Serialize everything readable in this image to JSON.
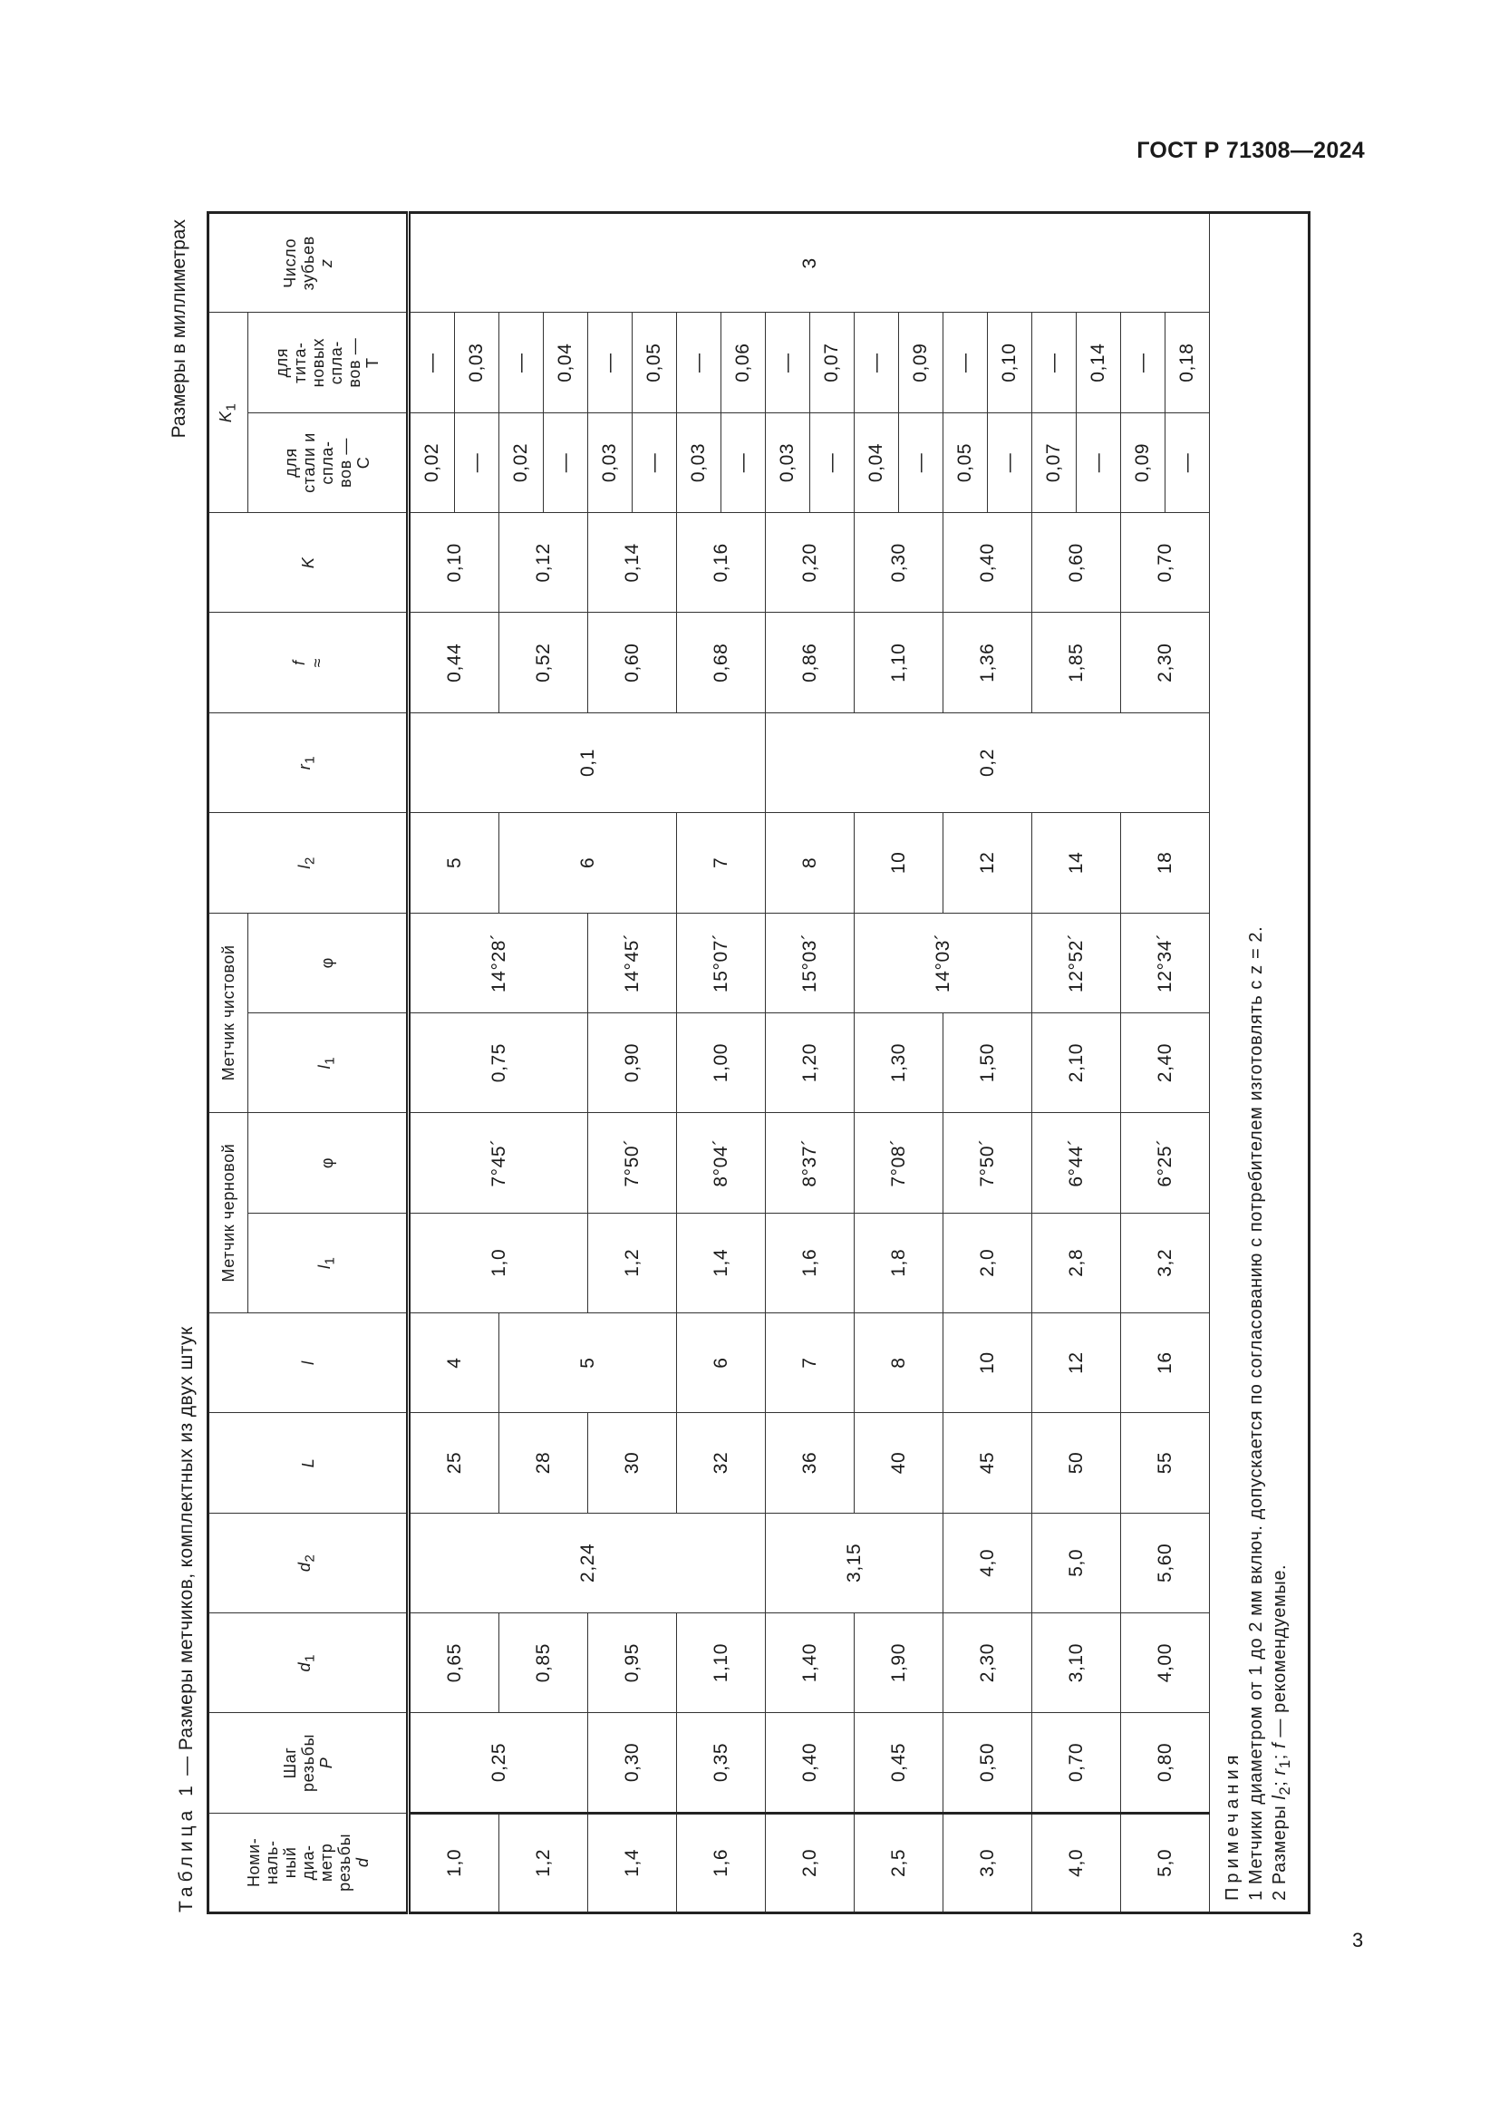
{
  "header": {
    "doc_id": "ГОСТ Р 71308—2024",
    "page_number": "3"
  },
  "caption": {
    "table_label": "Таблица 1",
    "table_title": " — Размеры метчиков, комплектных из двух штук",
    "units": "Размеры в миллиметрах"
  },
  "table_headers": {
    "d": {
      "text": "Номи-\nналь-\nный\nдиа-\nметр\nрезьбы",
      "sym": "d"
    },
    "P": {
      "text": "Шаг\nрезьбы",
      "sym": "P"
    },
    "d1": {
      "sym": "d",
      "sub": "1"
    },
    "d2": {
      "sym": "d",
      "sub": "2"
    },
    "L": {
      "sym": "L"
    },
    "l": {
      "sym": "l"
    },
    "rough_group": "Метчик черновой",
    "finish_group": "Метчик чистовой",
    "l1": {
      "sym": "l",
      "sub": "1"
    },
    "phi": "φ",
    "l2": {
      "sym": "l",
      "sub": "2"
    },
    "r1": {
      "sym": "r",
      "sub": "1"
    },
    "f": {
      "sym": "f",
      "approx": "≈"
    },
    "K": {
      "sym": "K"
    },
    "K1": {
      "sym": "K",
      "sub": "1"
    },
    "K1_C": "для\nстали и\nспла-\nвов —\nC",
    "K1_T": "для\nтита-\nновых\nспла-\nвов —\nT",
    "z": {
      "text": "Число\nзубьев",
      "sym": "z"
    }
  },
  "columns": [
    {
      "key": "d",
      "cells": [
        {
          "v": "1,0",
          "span": 1
        },
        {
          "v": "1,2",
          "span": 1
        },
        {
          "v": "1,4",
          "span": 1
        },
        {
          "v": "1,6",
          "span": 1
        },
        {
          "v": "2,0",
          "span": 1
        },
        {
          "v": "2,5",
          "span": 1
        },
        {
          "v": "3,0",
          "span": 1
        },
        {
          "v": "4,0",
          "span": 1
        },
        {
          "v": "5,0",
          "span": 1
        }
      ]
    },
    {
      "key": "P",
      "cells": [
        {
          "v": "0,25",
          "span": 2
        },
        {
          "v": "0,30",
          "span": 1
        },
        {
          "v": "0,35",
          "span": 1
        },
        {
          "v": "0,40",
          "span": 1
        },
        {
          "v": "0,45",
          "span": 1
        },
        {
          "v": "0,50",
          "span": 1
        },
        {
          "v": "0,70",
          "span": 1
        },
        {
          "v": "0,80",
          "span": 1
        }
      ]
    },
    {
      "key": "d1",
      "cells": [
        {
          "v": "0,65",
          "span": 1
        },
        {
          "v": "0,85",
          "span": 1
        },
        {
          "v": "0,95",
          "span": 1
        },
        {
          "v": "1,10",
          "span": 1
        },
        {
          "v": "1,40",
          "span": 1
        },
        {
          "v": "1,90",
          "span": 1
        },
        {
          "v": "2,30",
          "span": 1
        },
        {
          "v": "3,10",
          "span": 1
        },
        {
          "v": "4,00",
          "span": 1
        }
      ]
    },
    {
      "key": "d2",
      "cells": [
        {
          "v": "2,24",
          "span": 4
        },
        {
          "v": "3,15",
          "span": 2
        },
        {
          "v": "4,0",
          "span": 1
        },
        {
          "v": "5,0",
          "span": 1
        },
        {
          "v": "5,60",
          "span": 1
        }
      ]
    },
    {
      "key": "L",
      "cells": [
        {
          "v": "25",
          "span": 1
        },
        {
          "v": "28",
          "span": 1
        },
        {
          "v": "30",
          "span": 1
        },
        {
          "v": "32",
          "span": 1
        },
        {
          "v": "36",
          "span": 1
        },
        {
          "v": "40",
          "span": 1
        },
        {
          "v": "45",
          "span": 1
        },
        {
          "v": "50",
          "span": 1
        },
        {
          "v": "55",
          "span": 1
        }
      ]
    },
    {
      "key": "l",
      "cells": [
        {
          "v": "4",
          "span": 1
        },
        {
          "v": "5",
          "span": 2
        },
        {
          "v": "6",
          "span": 1
        },
        {
          "v": "7",
          "span": 1
        },
        {
          "v": "8",
          "span": 1
        },
        {
          "v": "10",
          "span": 1
        },
        {
          "v": "12",
          "span": 1
        },
        {
          "v": "16",
          "span": 1
        }
      ]
    },
    {
      "key": "rough_l1",
      "cells": [
        {
          "v": "1,0",
          "span": 2
        },
        {
          "v": "1,2",
          "span": 1
        },
        {
          "v": "1,4",
          "span": 1
        },
        {
          "v": "1,6",
          "span": 1
        },
        {
          "v": "1,8",
          "span": 1
        },
        {
          "v": "2,0",
          "span": 1
        },
        {
          "v": "2,8",
          "span": 1
        },
        {
          "v": "3,2",
          "span": 1
        }
      ]
    },
    {
      "key": "rough_phi",
      "cells": [
        {
          "v": "7°45´",
          "span": 2
        },
        {
          "v": "7°50´",
          "span": 1
        },
        {
          "v": "8°04´",
          "span": 1
        },
        {
          "v": "8°37´",
          "span": 1
        },
        {
          "v": "7°08´",
          "span": 1
        },
        {
          "v": "7°50´",
          "span": 1
        },
        {
          "v": "6°44´",
          "span": 1
        },
        {
          "v": "6°25´",
          "span": 1
        }
      ]
    },
    {
      "key": "finish_l1",
      "cells": [
        {
          "v": "0,75",
          "span": 2
        },
        {
          "v": "0,90",
          "span": 1
        },
        {
          "v": "1,00",
          "span": 1
        },
        {
          "v": "1,20",
          "span": 1
        },
        {
          "v": "1,30",
          "span": 1
        },
        {
          "v": "1,50",
          "span": 1
        },
        {
          "v": "2,10",
          "span": 1
        },
        {
          "v": "2,40",
          "span": 1
        }
      ]
    },
    {
      "key": "finish_phi",
      "cells": [
        {
          "v": "14°28´",
          "span": 2
        },
        {
          "v": "14°45´",
          "span": 1
        },
        {
          "v": "15°07´",
          "span": 1
        },
        {
          "v": "15°03´",
          "span": 1
        },
        {
          "v": "14°03´",
          "span": 2
        },
        {
          "v": "12°52´",
          "span": 1
        },
        {
          "v": "12°34´",
          "span": 1
        }
      ]
    },
    {
      "key": "l2",
      "cells": [
        {
          "v": "5",
          "span": 1
        },
        {
          "v": "6",
          "span": 2
        },
        {
          "v": "7",
          "span": 1
        },
        {
          "v": "8",
          "span": 1
        },
        {
          "v": "10",
          "span": 1
        },
        {
          "v": "12",
          "span": 1
        },
        {
          "v": "14",
          "span": 1
        },
        {
          "v": "18",
          "span": 1
        }
      ]
    },
    {
      "key": "r1",
      "cells": [
        {
          "v": "0,1",
          "span": 4
        },
        {
          "v": "0,2",
          "span": 5
        }
      ]
    },
    {
      "key": "f",
      "cells": [
        {
          "v": "0,44",
          "span": 1
        },
        {
          "v": "0,52",
          "span": 1
        },
        {
          "v": "0,60",
          "span": 1
        },
        {
          "v": "0,68",
          "span": 1
        },
        {
          "v": "0,86",
          "span": 1
        },
        {
          "v": "1,10",
          "span": 1
        },
        {
          "v": "1,36",
          "span": 1
        },
        {
          "v": "1,85",
          "span": 1
        },
        {
          "v": "2,30",
          "span": 1
        }
      ]
    },
    {
      "key": "K",
      "cells": [
        {
          "v": "0,10",
          "span": 1
        },
        {
          "v": "0,12",
          "span": 1
        },
        {
          "v": "0,14",
          "span": 1
        },
        {
          "v": "0,16",
          "span": 1
        },
        {
          "v": "0,20",
          "span": 1
        },
        {
          "v": "0,30",
          "span": 1
        },
        {
          "v": "0,40",
          "span": 1
        },
        {
          "v": "0,60",
          "span": 1
        },
        {
          "v": "0,70",
          "span": 1
        }
      ]
    },
    {
      "key": "K1_C",
      "half": [
        "0,02",
        "—",
        "0,02",
        "—",
        "0,03",
        "—",
        "0,03",
        "—",
        "0,03",
        "—",
        "0,04",
        "—",
        "0,05",
        "—",
        "0,07",
        "—",
        "0,09",
        "—"
      ]
    },
    {
      "key": "K1_T",
      "half": [
        "—",
        "0,03",
        "—",
        "0,04",
        "—",
        "0,05",
        "—",
        "0,06",
        "—",
        "0,07",
        "—",
        "0,09",
        "—",
        "0,10",
        "—",
        "0,14",
        "—",
        "0,18"
      ]
    },
    {
      "key": "z",
      "cells": [
        {
          "v": "3",
          "span": 9
        }
      ]
    }
  ],
  "notes": {
    "heading": "Примечания",
    "items": [
      "1 Метчики диаметром от 1 до 2 мм включ. допускается по согласованию с потребителем изготовлять с z = 2.",
      "2 Размеры l2; r1; f — рекомендуемые."
    ]
  }
}
